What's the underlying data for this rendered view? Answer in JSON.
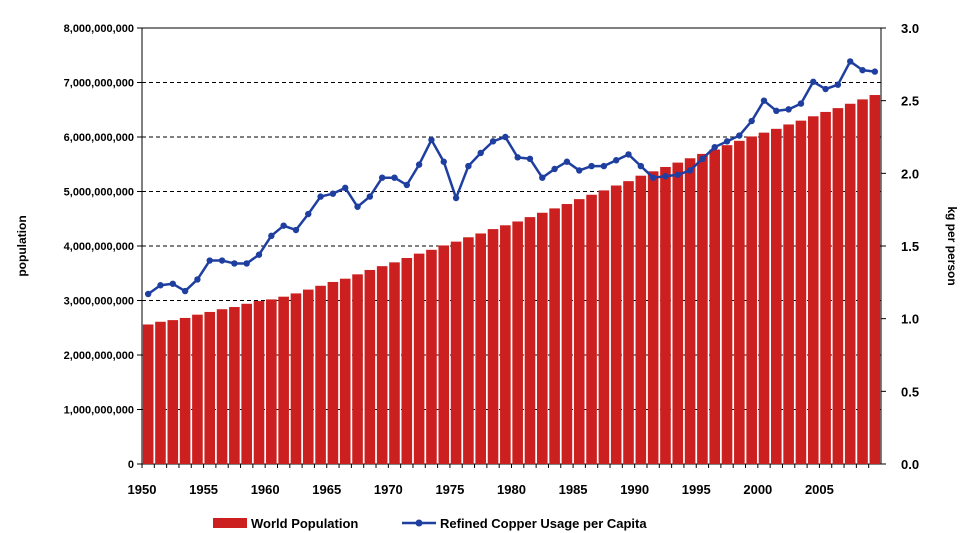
{
  "chart_data": {
    "type": "bar",
    "x": [
      1950,
      1951,
      1952,
      1953,
      1954,
      1955,
      1956,
      1957,
      1958,
      1959,
      1960,
      1961,
      1962,
      1963,
      1964,
      1965,
      1966,
      1967,
      1968,
      1969,
      1970,
      1971,
      1972,
      1973,
      1974,
      1975,
      1976,
      1977,
      1978,
      1979,
      1980,
      1981,
      1982,
      1983,
      1984,
      1985,
      1986,
      1987,
      1988,
      1989,
      1990,
      1991,
      1992,
      1993,
      1994,
      1995,
      1996,
      1997,
      1998,
      1999,
      2000,
      2001,
      2002,
      2003,
      2004,
      2005,
      2006,
      2007,
      2008,
      2009
    ],
    "x_ticks": [
      "1950",
      "1955",
      "1960",
      "1965",
      "1970",
      "1975",
      "1980",
      "1985",
      "1990",
      "1995",
      "2000",
      "2005"
    ],
    "series": [
      {
        "name": "World Population",
        "kind": "bar",
        "axis": "left",
        "color": "#cc1f1f",
        "values": [
          2560000000,
          2610000000,
          2640000000,
          2680000000,
          2740000000,
          2790000000,
          2840000000,
          2880000000,
          2940000000,
          2990000000,
          3020000000,
          3070000000,
          3130000000,
          3200000000,
          3270000000,
          3340000000,
          3400000000,
          3480000000,
          3560000000,
          3630000000,
          3700000000,
          3780000000,
          3860000000,
          3930000000,
          4010000000,
          4080000000,
          4160000000,
          4230000000,
          4310000000,
          4380000000,
          4450000000,
          4530000000,
          4610000000,
          4690000000,
          4770000000,
          4860000000,
          4940000000,
          5020000000,
          5110000000,
          5190000000,
          5290000000,
          5370000000,
          5450000000,
          5530000000,
          5610000000,
          5690000000,
          5770000000,
          5850000000,
          5930000000,
          6010000000,
          6080000000,
          6150000000,
          6230000000,
          6300000000,
          6380000000,
          6460000000,
          6530000000,
          6610000000,
          6690000000,
          6770000000
        ]
      },
      {
        "name": "Refined Copper Usage per Capita",
        "kind": "line",
        "axis": "right",
        "color": "#1f3fa0",
        "values": [
          1.17,
          1.23,
          1.24,
          1.19,
          1.27,
          1.4,
          1.4,
          1.38,
          1.38,
          1.44,
          1.57,
          1.64,
          1.61,
          1.72,
          1.84,
          1.86,
          1.9,
          1.77,
          1.84,
          1.97,
          1.97,
          1.92,
          2.06,
          2.23,
          2.08,
          1.83,
          2.05,
          2.14,
          2.22,
          2.25,
          2.11,
          2.1,
          1.97,
          2.03,
          2.08,
          2.02,
          2.05,
          2.05,
          2.09,
          2.13,
          2.05,
          1.97,
          1.98,
          1.99,
          2.02,
          2.1,
          2.18,
          2.22,
          2.26,
          2.36,
          2.5,
          2.43,
          2.44,
          2.48,
          2.63,
          2.58,
          2.61,
          2.77,
          2.71,
          2.7
        ]
      }
    ],
    "ylabel_left": "population",
    "ylabel_right": "kg per person",
    "ylim_left": [
      0,
      8000000000
    ],
    "ylim_right": [
      0,
      3.0
    ],
    "y_ticks_left": [
      "0",
      "1,000,000,000",
      "2,000,000,000",
      "3,000,000,000",
      "4,000,000,000",
      "5,000,000,000",
      "6,000,000,000",
      "7,000,000,000",
      "8,000,000,000"
    ],
    "y_ticks_right": [
      "0.0",
      "0.5",
      "1.0",
      "1.5",
      "2.0",
      "2.5",
      "3.0"
    ],
    "grid": "dashed horizontal",
    "legend_position": "bottom",
    "legend": [
      "World Population",
      "Refined Copper Usage per Capita"
    ]
  }
}
